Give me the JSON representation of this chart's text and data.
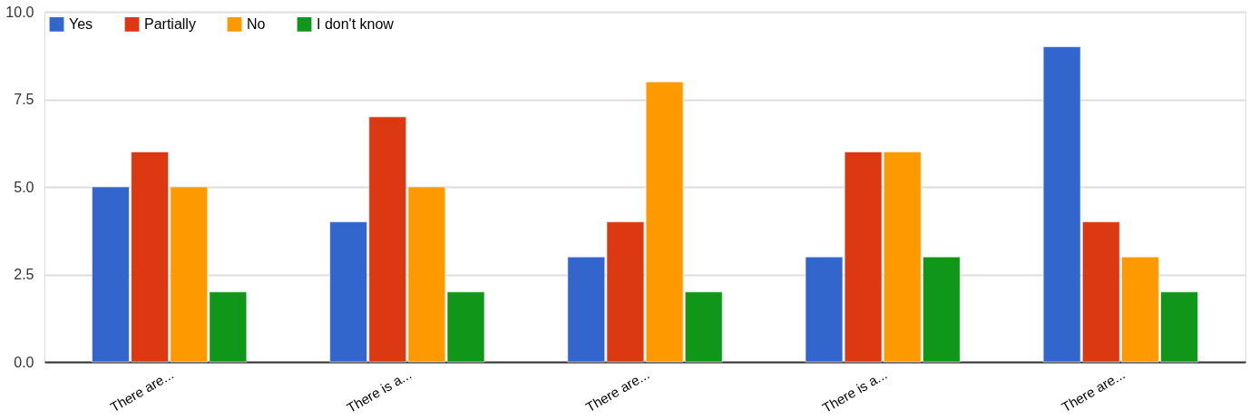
{
  "chart_data": {
    "type": "bar",
    "categories": [
      "There are...",
      "There is a...",
      "There are...",
      "There is a...",
      "There are..."
    ],
    "series": [
      {
        "name": "Yes",
        "color": "#3366cc",
        "values": [
          5,
          4,
          3,
          3,
          9
        ]
      },
      {
        "name": "Partially",
        "color": "#dc3912",
        "values": [
          6,
          7,
          4,
          6,
          4
        ]
      },
      {
        "name": "No",
        "color": "#ff9900",
        "values": [
          5,
          5,
          8,
          6,
          3
        ]
      },
      {
        "name": "I don't know",
        "color": "#109618",
        "values": [
          2,
          2,
          2,
          3,
          2
        ]
      }
    ],
    "ylim": [
      0,
      10
    ],
    "yticks": [
      {
        "value": 0,
        "label": "0.0"
      },
      {
        "value": 2.5,
        "label": "2.5"
      },
      {
        "value": 5,
        "label": "5.0"
      },
      {
        "value": 7.5,
        "label": "7.5"
      },
      {
        "value": 10,
        "label": "10.0"
      }
    ],
    "grid": "y",
    "legend": "top left"
  }
}
